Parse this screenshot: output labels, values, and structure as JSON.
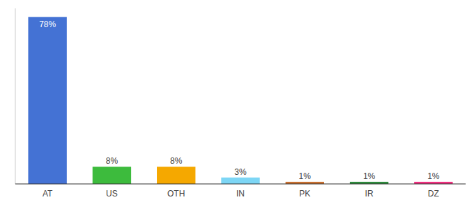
{
  "chart_data": {
    "type": "bar",
    "categories": [
      "AT",
      "US",
      "OTH",
      "IN",
      "PK",
      "IR",
      "DZ"
    ],
    "values": [
      78,
      8,
      8,
      3,
      1,
      1,
      1
    ],
    "value_labels": [
      "78%",
      "8%",
      "8%",
      "3%",
      "1%",
      "1%",
      "1%"
    ],
    "colors": [
      "#4472d4",
      "#3dbb3d",
      "#f5a800",
      "#7dd6f5",
      "#c87030",
      "#2e8b3d",
      "#f03080"
    ],
    "ylim": [
      0,
      82
    ],
    "data_labels": true,
    "tick_labels": "x",
    "grid": false
  }
}
